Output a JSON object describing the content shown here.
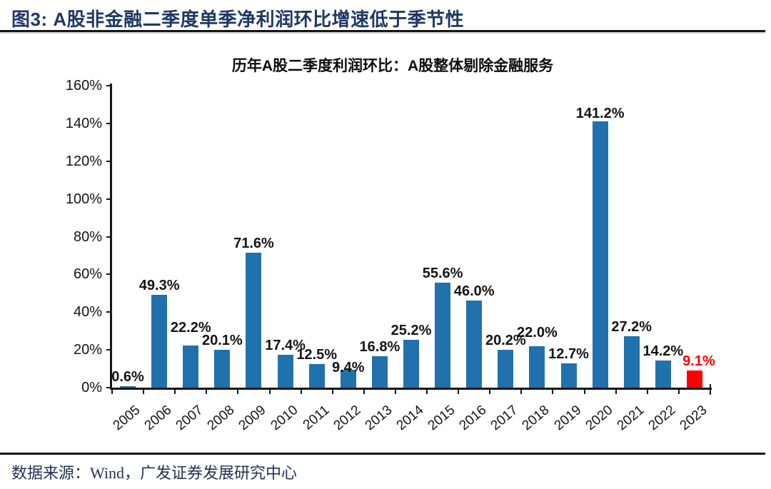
{
  "header": {
    "title": "图3: A股非金融二季度单季净利润环比增速低于季节性"
  },
  "chart_data": {
    "type": "bar",
    "title": "历年A股二季度利润环比：A股整体剔除金融服务",
    "categories": [
      "2005",
      "2006",
      "2007",
      "2008",
      "2009",
      "2010",
      "2011",
      "2012",
      "2013",
      "2014",
      "2015",
      "2016",
      "2017",
      "2018",
      "2019",
      "2020",
      "2021",
      "2022",
      "2023"
    ],
    "values": [
      0.6,
      49.3,
      22.2,
      20.1,
      71.6,
      17.4,
      12.5,
      9.4,
      16.8,
      25.2,
      55.6,
      46.0,
      20.2,
      22.0,
      12.7,
      141.2,
      27.2,
      14.2,
      9.1
    ],
    "value_labels": [
      "0.6%",
      "49.3%",
      "22.2%",
      "20.1%",
      "71.6%",
      "17.4%",
      "12.5%",
      "9.4%",
      "16.8%",
      "25.2%",
      "55.6%",
      "46.0%",
      "20.2%",
      "22.0%",
      "12.7%",
      "141.2%",
      "27.2%",
      "14.2%",
      "9.1%"
    ],
    "xlabel": "",
    "ylabel": "",
    "ylim": [
      0,
      160
    ],
    "ytick_step": 20,
    "ytick_labels": [
      "0%",
      "20%",
      "40%",
      "60%",
      "80%",
      "100%",
      "120%",
      "140%",
      "160%"
    ],
    "grid": false,
    "legend": null,
    "bar_color": "#2171AD",
    "highlight_index": 18,
    "highlight_color": "#FF0000",
    "label_color": "#141414",
    "axis_color": "#161616"
  },
  "footer": {
    "source": "数据来源：Wind，广发证券发展研究中心"
  }
}
